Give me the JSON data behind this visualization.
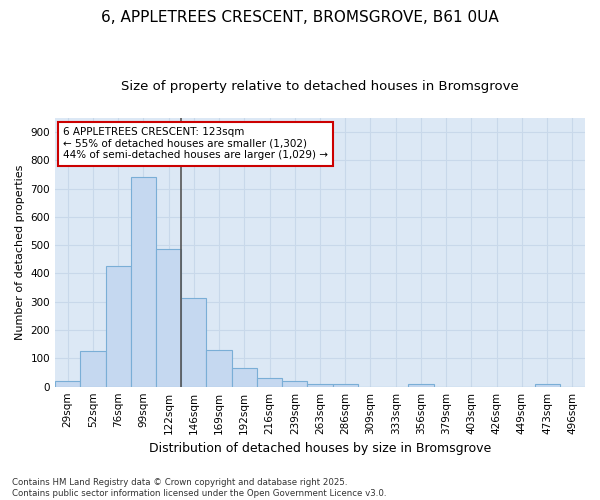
{
  "title1": "6, APPLETREES CRESCENT, BROMSGROVE, B61 0UA",
  "title2": "Size of property relative to detached houses in Bromsgrove",
  "xlabel": "Distribution of detached houses by size in Bromsgrove",
  "ylabel": "Number of detached properties",
  "categories": [
    "29sqm",
    "52sqm",
    "76sqm",
    "99sqm",
    "122sqm",
    "146sqm",
    "169sqm",
    "192sqm",
    "216sqm",
    "239sqm",
    "263sqm",
    "286sqm",
    "309sqm",
    "333sqm",
    "356sqm",
    "379sqm",
    "403sqm",
    "426sqm",
    "449sqm",
    "473sqm",
    "496sqm"
  ],
  "values": [
    20,
    125,
    425,
    740,
    485,
    315,
    130,
    67,
    30,
    20,
    10,
    8,
    0,
    0,
    8,
    0,
    0,
    0,
    0,
    8,
    0
  ],
  "bar_color": "#c5d8f0",
  "bar_edge_color": "#7aaed6",
  "property_line_index": 4,
  "property_line_color": "#555555",
  "annotation_box_text": "6 APPLETREES CRESCENT: 123sqm\n← 55% of detached houses are smaller (1,302)\n44% of semi-detached houses are larger (1,029) →",
  "annotation_box_color": "#ffffff",
  "annotation_box_edge_color": "#cc0000",
  "grid_color": "#c8d8ea",
  "plot_bg_color": "#dce8f5",
  "fig_bg_color": "#ffffff",
  "ylim": [
    0,
    950
  ],
  "yticks": [
    0,
    100,
    200,
    300,
    400,
    500,
    600,
    700,
    800,
    900
  ],
  "footer_text": "Contains HM Land Registry data © Crown copyright and database right 2025.\nContains public sector information licensed under the Open Government Licence v3.0.",
  "annotation_fontsize": 7.5,
  "title1_fontsize": 11,
  "title2_fontsize": 9.5,
  "tick_fontsize": 7.5,
  "ylabel_fontsize": 8,
  "xlabel_fontsize": 9
}
